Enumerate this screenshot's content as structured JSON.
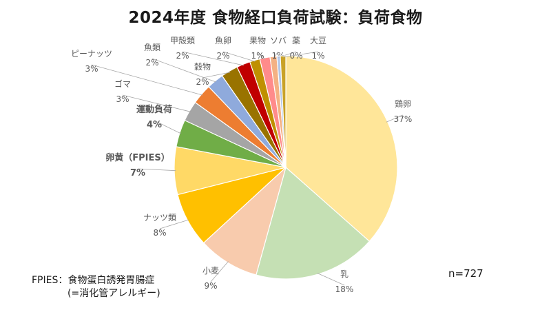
{
  "title": "2024年度 食物経口負荷試験：負荷食物",
  "footnote": {
    "line1": "FPIES：食物蛋白誘発胃腸症",
    "line2": "(=消化管アレルギー)"
  },
  "sample_size": "n=727",
  "chart_data": {
    "type": "pie",
    "title": "2024年度 食物経口負荷試験：負荷食物",
    "total_label": "n=727",
    "slices": [
      {
        "name": "鶏卵",
        "percent_label": "37%",
        "value": 37,
        "color": "#FFE699",
        "highlight": false
      },
      {
        "name": "乳",
        "percent_label": "18%",
        "value": 18,
        "color": "#C5E0B4",
        "highlight": false
      },
      {
        "name": "小麦",
        "percent_label": "9%",
        "value": 9,
        "color": "#F8CBAD",
        "highlight": false
      },
      {
        "name": "ナッツ類",
        "percent_label": "8%",
        "value": 8,
        "color": "#FFC000",
        "highlight": false
      },
      {
        "name": "卵黄（FPIES）",
        "percent_label": "7%",
        "value": 7,
        "color": "#FFD966",
        "highlight": true,
        "label_color": "#F4A020"
      },
      {
        "name": "運動負荷",
        "percent_label": "4%",
        "value": 4,
        "color": "#70AD47",
        "highlight": true,
        "label_color": "#2F5597"
      },
      {
        "name": "ゴマ",
        "percent_label": "3%",
        "value": 3,
        "color": "#A5A5A5",
        "highlight": false
      },
      {
        "name": "ピーナッツ",
        "percent_label": "3%",
        "value": 3,
        "color": "#ED7D31",
        "highlight": false
      },
      {
        "name": "魚類",
        "percent_label": "2%",
        "value": 2.5,
        "color": "#8FAADC",
        "highlight": false
      },
      {
        "name": "穀物",
        "percent_label": "2%",
        "value": 2.5,
        "color": "#997300",
        "highlight": false
      },
      {
        "name": "甲殻類",
        "percent_label": "2%",
        "value": 2,
        "color": "#C00000",
        "highlight": false
      },
      {
        "name": "魚卵",
        "percent_label": "2%",
        "value": 1.5,
        "color": "#BF9000",
        "highlight": false
      },
      {
        "name": "果物",
        "percent_label": "1%",
        "value": 1.5,
        "color": "#FF8B8B",
        "highlight": false
      },
      {
        "name": "ソバ",
        "percent_label": "1%",
        "value": 1,
        "color": "#F4B183",
        "highlight": false
      },
      {
        "name": "薬",
        "percent_label": "0%",
        "value": 0.5,
        "color": "#B4C7E7",
        "highlight": false
      },
      {
        "name": "大豆",
        "percent_label": "1%",
        "value": 0.8,
        "color": "#C9A227",
        "highlight": false
      }
    ]
  }
}
